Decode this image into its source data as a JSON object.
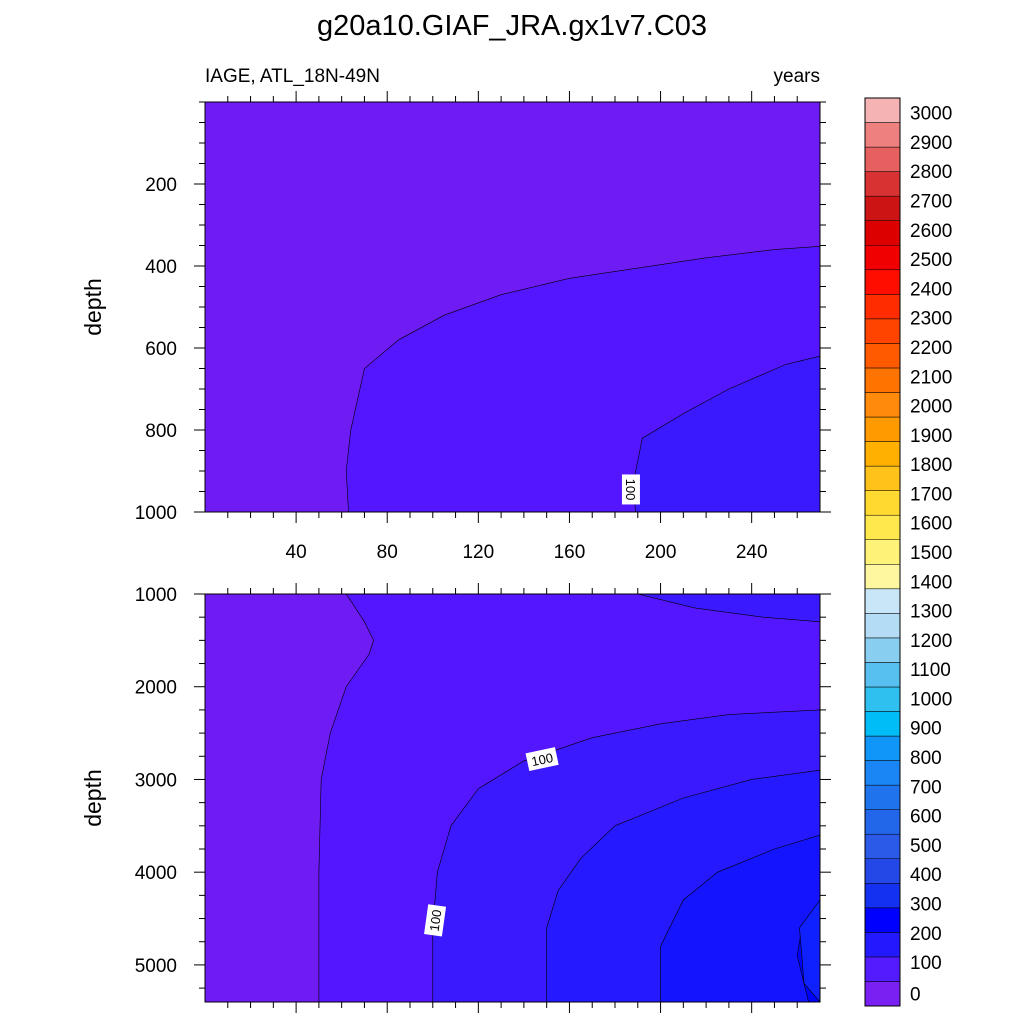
{
  "chart_data": {
    "type": "contour",
    "title": "g20a10.GIAF_JRA.gx1v7.C03",
    "left_label": "IAGE, ATL_18N-49N",
    "right_label": "years",
    "x": {
      "range": [
        0,
        270
      ],
      "major_ticks": [
        40,
        80,
        120,
        160,
        200,
        240
      ],
      "minor_step": 10
    },
    "panels": [
      {
        "name": "upper",
        "ylabel": "depth",
        "ylim": [
          0,
          1000
        ],
        "inverted": true,
        "yticks": [
          200,
          400,
          600,
          800,
          1000
        ],
        "y_minor_step": 50,
        "show_x_tick_labels": true,
        "bands": [
          {
            "level": 50,
            "color": "#5416ff",
            "boundary": [
              [
                63,
                1000
              ],
              [
                62,
                900
              ],
              [
                64,
                800
              ],
              [
                70,
                650
              ],
              [
                85,
                580
              ],
              [
                105,
                520
              ],
              [
                130,
                470
              ],
              [
                160,
                430
              ],
              [
                190,
                405
              ],
              [
                220,
                380
              ],
              [
                250,
                360
              ],
              [
                270,
                352
              ]
            ]
          },
          {
            "level": 100,
            "color": "#3a19ff",
            "boundary": [
              [
                189,
                1000
              ],
              [
                188,
                930
              ],
              [
                192,
                820
              ],
              [
                210,
                760
              ],
              [
                230,
                700
              ],
              [
                255,
                640
              ],
              [
                270,
                620
              ]
            ]
          }
        ],
        "contour_labels": [
          {
            "text": "100",
            "x": 187,
            "y": 945,
            "angle": 90
          }
        ]
      },
      {
        "name": "lower",
        "ylabel": "depth",
        "ylim": [
          1000,
          5400
        ],
        "inverted": true,
        "yticks": [
          1000,
          2000,
          3000,
          4000,
          5000
        ],
        "y_minor_step": 250,
        "show_x_tick_labels": false,
        "bands": [
          {
            "level": 50,
            "color": "#5416ff",
            "boundary": [
              [
                50,
                5400
              ],
              [
                50,
                4000
              ],
              [
                51,
                3000
              ],
              [
                55,
                2500
              ],
              [
                62,
                2000
              ],
              [
                72,
                1650
              ],
              [
                74,
                1500
              ],
              [
                70,
                1300
              ],
              [
                62,
                1000
              ]
            ]
          },
          {
            "level": 100,
            "color": "#3a19ff",
            "boundary": [
              [
                100,
                5400
              ],
              [
                100,
                4600
              ],
              [
                102,
                4000
              ],
              [
                108,
                3500
              ],
              [
                120,
                3100
              ],
              [
                140,
                2800
              ],
              [
                170,
                2550
              ],
              [
                200,
                2400
              ],
              [
                230,
                2300
              ],
              [
                270,
                2250
              ]
            ],
            "upper_boundary": [
              [
                190,
                1000
              ],
              [
                215,
                1150
              ],
              [
                245,
                1250
              ],
              [
                270,
                1300
              ]
            ]
          },
          {
            "level": 150,
            "color": "#2519ff",
            "boundary": [
              [
                150,
                5400
              ],
              [
                150,
                4600
              ],
              [
                155,
                4200
              ],
              [
                165,
                3850
              ],
              [
                180,
                3500
              ],
              [
                210,
                3200
              ],
              [
                240,
                3000
              ],
              [
                270,
                2900
              ]
            ]
          },
          {
            "level": 200,
            "color": "#1414ff",
            "boundary": [
              [
                200,
                5400
              ],
              [
                200,
                4800
              ],
              [
                210,
                4300
              ],
              [
                225,
                4000
              ],
              [
                250,
                3750
              ],
              [
                270,
                3600
              ]
            ]
          },
          {
            "level": 250,
            "color": "#0000ff",
            "boundary": [
              [
                265,
                5400
              ],
              [
                260,
                4900
              ],
              [
                262,
                4600
              ],
              [
                270,
                4400
              ]
            ]
          },
          {
            "level": 300,
            "color": "#1021ff",
            "boundary": [
              [
                270,
                4300
              ],
              [
                261,
                4600
              ],
              [
                263,
                5200
              ],
              [
                270,
                5400
              ]
            ]
          }
        ],
        "contour_labels": [
          {
            "text": "100",
            "x": 148,
            "y": 2780,
            "angle": -12
          },
          {
            "text": "100",
            "x": 101,
            "y": 4520,
            "angle": -82
          }
        ]
      }
    ],
    "background_color": "#6f1bf4",
    "colorbar": {
      "levels": [
        0,
        100,
        200,
        300,
        400,
        500,
        600,
        700,
        800,
        900,
        1000,
        1100,
        1200,
        1300,
        1400,
        1500,
        1600,
        1700,
        1800,
        1900,
        2000,
        2100,
        2200,
        2300,
        2400,
        2500,
        2600,
        2700,
        2800,
        2900,
        3000
      ],
      "colors": [
        "#7a20f2",
        "#541bff",
        "#2219ff",
        "#0000ff",
        "#1430f0",
        "#2448e8",
        "#2c5ae8",
        "#2266ea",
        "#1f74ee",
        "#1a86f5",
        "#0f96f8",
        "#00bdf8",
        "#30c0f0",
        "#58c0f0",
        "#88cef0",
        "#b4dcf4",
        "#c8e6f8",
        "#fff6a0",
        "#fff278",
        "#ffe84e",
        "#ffd830",
        "#ffc21a",
        "#ffb000",
        "#ff9a00",
        "#ff8a0c",
        "#ff7400",
        "#ff5a00",
        "#ff4400",
        "#ff2c00",
        "#ff0e00",
        "#f00000",
        "#dc0000",
        "#cc1414",
        "#d83232",
        "#e66060",
        "#ef8080",
        "#f5b3b3"
      ]
    }
  }
}
